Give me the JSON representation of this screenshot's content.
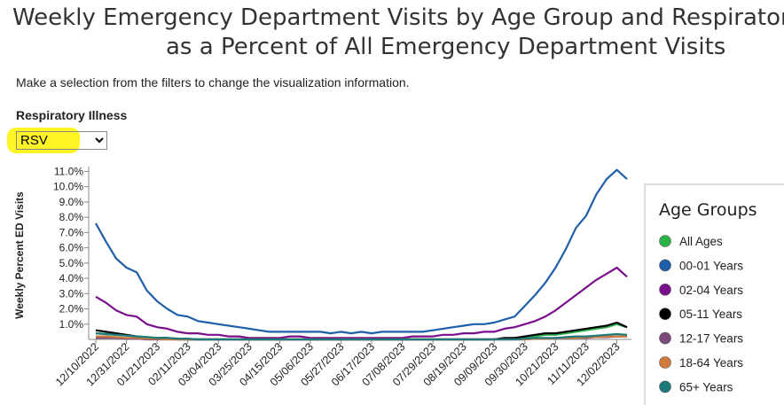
{
  "header": {
    "title_lines": [
      "Weekly Emergency Department Visits by Age Group and Respiratory",
      "as a Percent of All Emergency Department Visits"
    ],
    "instructions": "Make a selection from the filters to change the visualization information.",
    "filter_label": "Respiratory Illness",
    "filter_value": "RSV"
  },
  "chart_data": {
    "type": "line",
    "ylabel": "Weekly Percent ED Visits",
    "legend_title": "Age Groups",
    "categories": [
      "12/10/2022",
      null,
      null,
      "12/31/2022",
      null,
      null,
      "01/21/2023",
      null,
      null,
      "02/11/2023",
      null,
      null,
      "03/04/2023",
      null,
      null,
      "03/25/2023",
      null,
      null,
      "04/15/2023",
      null,
      null,
      "05/06/2023",
      null,
      null,
      "05/27/2023",
      null,
      null,
      "06/17/2023",
      null,
      null,
      "07/08/2023",
      null,
      null,
      "07/29/2023",
      null,
      null,
      "08/19/2023",
      null,
      null,
      "09/09/2023",
      null,
      null,
      "09/30/2023",
      null,
      null,
      "10/21/2023",
      null,
      null,
      "11/11/2023",
      null,
      null,
      "12/02/2023",
      null
    ],
    "ylim": [
      0,
      11.2
    ],
    "yticks": [
      {
        "value": 1,
        "label": "1.0%"
      },
      {
        "value": 2,
        "label": "2.0%"
      },
      {
        "value": 3,
        "label": "3.0%"
      },
      {
        "value": 4,
        "label": "4.0%"
      },
      {
        "value": 5,
        "label": "5.0%"
      },
      {
        "value": 6,
        "label": "6.0%"
      },
      {
        "value": 7,
        "label": "7.0%"
      },
      {
        "value": 8,
        "label": "8.0%"
      },
      {
        "value": 9,
        "label": "9.0%"
      },
      {
        "value": 10,
        "label": "10.0%"
      },
      {
        "value": 11,
        "label": "11.0%"
      }
    ],
    "series": [
      {
        "name": "All Ages",
        "color": "#2db34a",
        "values": [
          0.4,
          0.35,
          0.3,
          0.25,
          0.2,
          0.15,
          0.1,
          0.1,
          0.05,
          0,
          0,
          0,
          0,
          0,
          0,
          0,
          0,
          0,
          0,
          0,
          0,
          0,
          0,
          0,
          0,
          0,
          0,
          0,
          0,
          0,
          0,
          0,
          0,
          0,
          0,
          0,
          0,
          0,
          0,
          0,
          0.05,
          0.1,
          0.1,
          0.2,
          0.3,
          0.3,
          0.4,
          0.5,
          0.6,
          0.7,
          0.8,
          1.0,
          0.8
        ]
      },
      {
        "name": "00-01 Years",
        "color": "#1f5fa8",
        "values": [
          7.6,
          6.4,
          5.3,
          4.7,
          4.4,
          3.2,
          2.5,
          2.0,
          1.6,
          1.5,
          1.2,
          1.1,
          1.0,
          0.9,
          0.8,
          0.7,
          0.6,
          0.5,
          0.5,
          0.5,
          0.5,
          0.5,
          0.5,
          0.4,
          0.5,
          0.4,
          0.5,
          0.4,
          0.5,
          0.5,
          0.5,
          0.5,
          0.5,
          0.6,
          0.7,
          0.8,
          0.9,
          1.0,
          1.0,
          1.1,
          1.3,
          1.5,
          2.2,
          2.9,
          3.7,
          4.7,
          5.9,
          7.3,
          8.1,
          9.5,
          10.5,
          11.1,
          10.5
        ]
      },
      {
        "name": "02-04 Years",
        "color": "#7a0f8c",
        "values": [
          2.8,
          2.4,
          1.9,
          1.6,
          1.5,
          1.0,
          0.8,
          0.7,
          0.5,
          0.4,
          0.4,
          0.3,
          0.3,
          0.2,
          0.2,
          0.1,
          0.1,
          0.1,
          0.1,
          0.2,
          0.2,
          0.1,
          0.1,
          0.1,
          0.1,
          0.1,
          0.1,
          0.1,
          0.1,
          0.1,
          0.1,
          0.2,
          0.2,
          0.2,
          0.3,
          0.3,
          0.4,
          0.4,
          0.5,
          0.5,
          0.7,
          0.8,
          1.0,
          1.2,
          1.5,
          1.9,
          2.4,
          2.9,
          3.4,
          3.9,
          4.3,
          4.7,
          4.1
        ]
      },
      {
        "name": "05-11 Years",
        "color": "#000000",
        "values": [
          0.6,
          0.5,
          0.4,
          0.3,
          0.2,
          0.1,
          0.1,
          0.1,
          0,
          0,
          0,
          0,
          0,
          0,
          0,
          0,
          0,
          0,
          0,
          0,
          0,
          0,
          0,
          0,
          0,
          0,
          0,
          0,
          0,
          0,
          0,
          0,
          0,
          0,
          0,
          0,
          0,
          0,
          0,
          0,
          0.1,
          0.1,
          0.2,
          0.3,
          0.4,
          0.4,
          0.5,
          0.6,
          0.7,
          0.8,
          0.9,
          1.1,
          0.8
        ]
      },
      {
        "name": "12-17 Years",
        "color": "#7b4a7a",
        "values": [
          0.1,
          0.1,
          0.1,
          0.05,
          0.05,
          0,
          0,
          0,
          0,
          0,
          0,
          0,
          0,
          0,
          0,
          0,
          0,
          0,
          0,
          0,
          0,
          0,
          0,
          0,
          0,
          0,
          0,
          0,
          0,
          0,
          0,
          0,
          0,
          0,
          0,
          0,
          0,
          0,
          0,
          0,
          0,
          0,
          0,
          0.05,
          0.05,
          0.1,
          0.1,
          0.1,
          0.1,
          0.15,
          0.15,
          0.2,
          0.2
        ]
      },
      {
        "name": "18-64 Years",
        "color": "#d07a3c",
        "values": [
          0.2,
          0.2,
          0.15,
          0.1,
          0.1,
          0.05,
          0.05,
          0,
          0,
          0,
          0,
          0,
          0,
          0,
          0,
          0,
          0,
          0,
          0,
          0,
          0,
          0,
          0,
          0,
          0,
          0,
          0,
          0,
          0,
          0,
          0,
          0,
          0,
          0,
          0,
          0,
          0,
          0,
          0,
          0,
          0,
          0,
          0,
          0.05,
          0.05,
          0.1,
          0.1,
          0.1,
          0.15,
          0.15,
          0.2,
          0.2,
          0.2
        ]
      },
      {
        "name": "65+ Years",
        "color": "#1d7a7a",
        "values": [
          0.4,
          0.35,
          0.3,
          0.25,
          0.2,
          0.15,
          0.1,
          0.1,
          0.05,
          0.05,
          0,
          0,
          0,
          0,
          0,
          0,
          0,
          0,
          0,
          0,
          0,
          0,
          0,
          0,
          0,
          0,
          0,
          0,
          0,
          0,
          0,
          0,
          0,
          0,
          0,
          0,
          0,
          0,
          0,
          0,
          0,
          0,
          0.05,
          0.1,
          0.1,
          0.1,
          0.15,
          0.2,
          0.2,
          0.25,
          0.3,
          0.35,
          0.3
        ]
      }
    ]
  }
}
